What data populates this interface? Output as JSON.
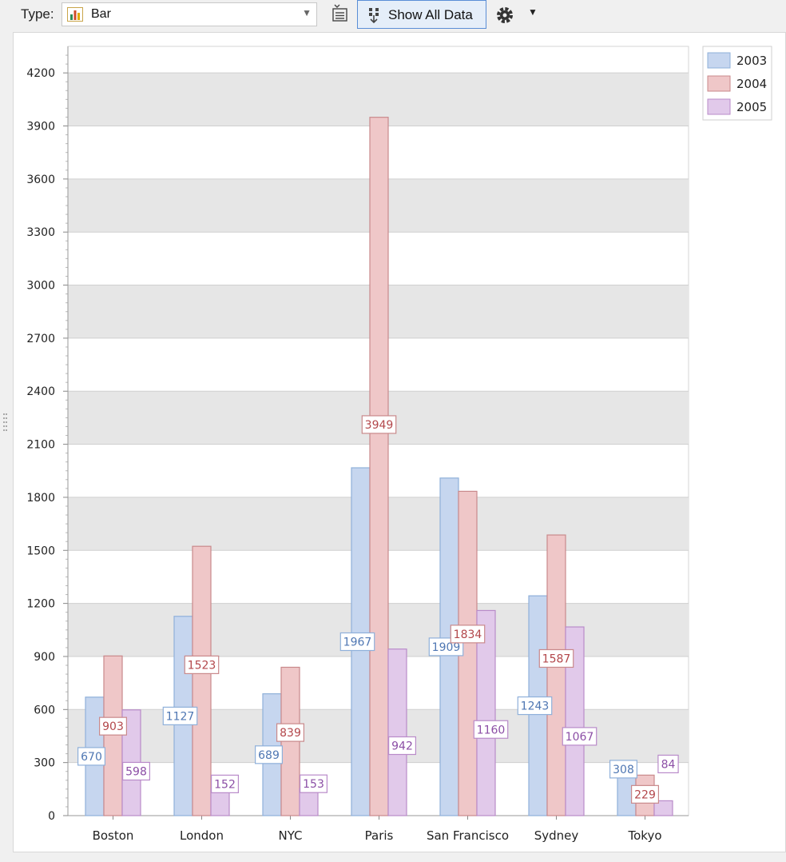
{
  "toolbar": {
    "type_label": "Type:",
    "type_value": "Bar",
    "show_all_label": "Show All Data"
  },
  "colors": {
    "2003": {
      "fill": "#c6d6ef",
      "stroke": "#8fb0da",
      "text": "#4f77b3"
    },
    "2004": {
      "fill": "#efc7c8",
      "stroke": "#c9898b",
      "text": "#b3474b"
    },
    "2005": {
      "fill": "#e1c9ea",
      "stroke": "#b98bc9",
      "text": "#8c4fa6"
    },
    "band": "#e6e6e6",
    "grid": "#cfcfcf"
  },
  "chart_data": {
    "type": "bar",
    "categories": [
      "Boston",
      "London",
      "NYC",
      "Paris",
      "San Francisco",
      "Sydney",
      "Tokyo"
    ],
    "series": [
      {
        "name": "2003",
        "values": [
          670,
          1127,
          689,
          1967,
          1909,
          1243,
          308
        ]
      },
      {
        "name": "2004",
        "values": [
          903,
          1523,
          839,
          3949,
          1834,
          1587,
          229
        ]
      },
      {
        "name": "2005",
        "values": [
          598,
          152,
          153,
          942,
          1160,
          1067,
          84
        ]
      }
    ],
    "ylim": [
      0,
      4350
    ],
    "yticks": [
      0,
      300,
      600,
      900,
      1200,
      1500,
      1800,
      2100,
      2400,
      2700,
      3000,
      3300,
      3600,
      3900,
      4200
    ],
    "grid": true,
    "legend_position": "top-right",
    "data_labels": true
  }
}
